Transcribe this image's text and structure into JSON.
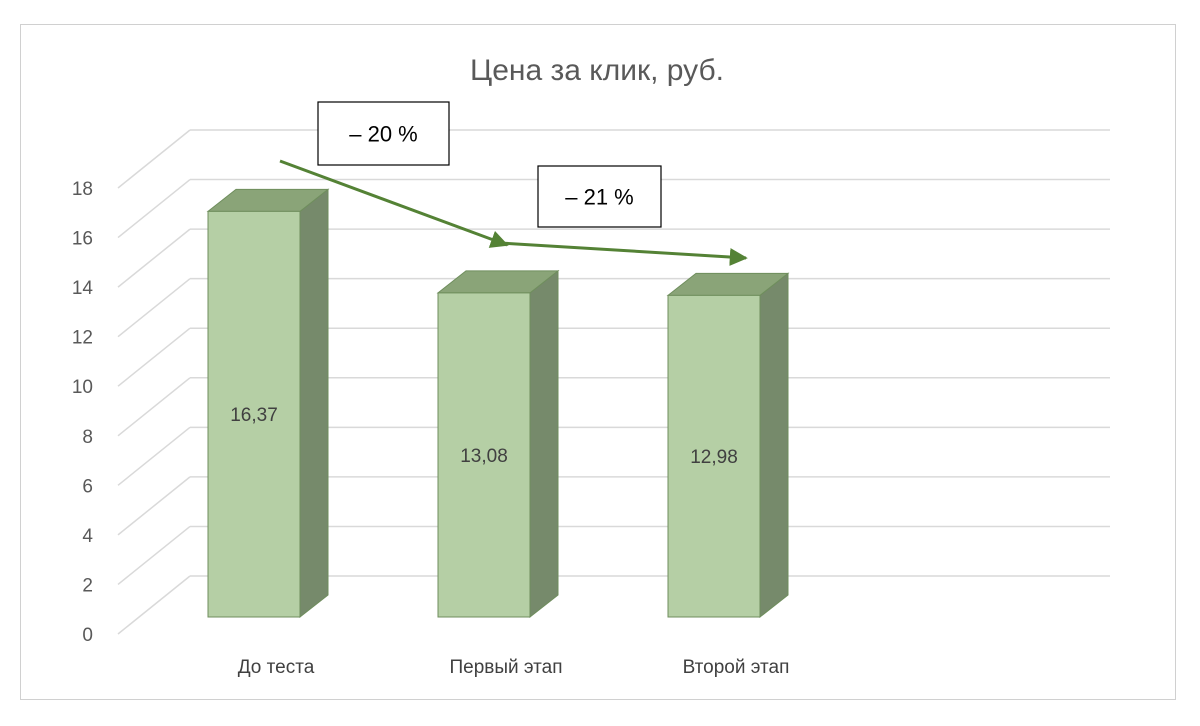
{
  "chart_data": {
    "type": "bar",
    "title": "Цена за клик, руб.",
    "categories": [
      "До теста",
      "Первый этап",
      "Второй этап"
    ],
    "values": [
      16.37,
      13.08,
      12.98
    ],
    "value_labels": [
      "16,37",
      "13,08",
      "12,98"
    ],
    "ylim": [
      0,
      18
    ],
    "yticks": [
      0,
      2,
      4,
      6,
      8,
      10,
      12,
      14,
      16,
      18
    ],
    "xlabel": "",
    "ylabel": "",
    "grid": true,
    "style": "3d-column",
    "annotations": [
      {
        "text": "– 20 %"
      },
      {
        "text": "– 21 %"
      }
    ]
  },
  "colors": {
    "bar_front": "#b5cfa5",
    "bar_top": "#8aa478",
    "bar_side": "#768a6b",
    "bar_edge": "#6f8e5d",
    "arrow": "#548235",
    "grid": "#d9d9d9"
  }
}
